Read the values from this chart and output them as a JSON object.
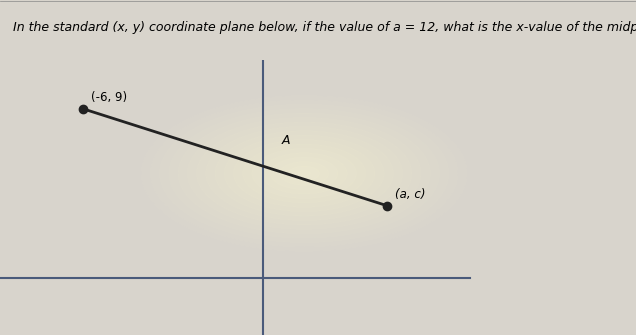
{
  "title": "In the standard (x, y) coordinate plane below, if the value of a = 12, what is the x-value of the midpoint of line segment A?",
  "title_fontsize": 9.0,
  "bg_color": "#d8d4cc",
  "plot_bg_color": "#d8d4cc",
  "glow_color": "#fffde0",
  "axis_color": "#4a5a7a",
  "line_color": "#222222",
  "point1_data": [
    -6,
    9
  ],
  "point2_data": [
    5,
    3
  ],
  "label1": "(-6, 9)",
  "label2": "(a, c)",
  "segment_label": "A",
  "x_axis_range": [
    -9,
    14
  ],
  "y_axis_range": [
    -5,
    12
  ],
  "x_axis_y": -1.5,
  "y_axis_x": 0.5,
  "x_axis_x_end": 8.0,
  "title_bg": "#e8e8e8",
  "title_line_color": "#888888"
}
